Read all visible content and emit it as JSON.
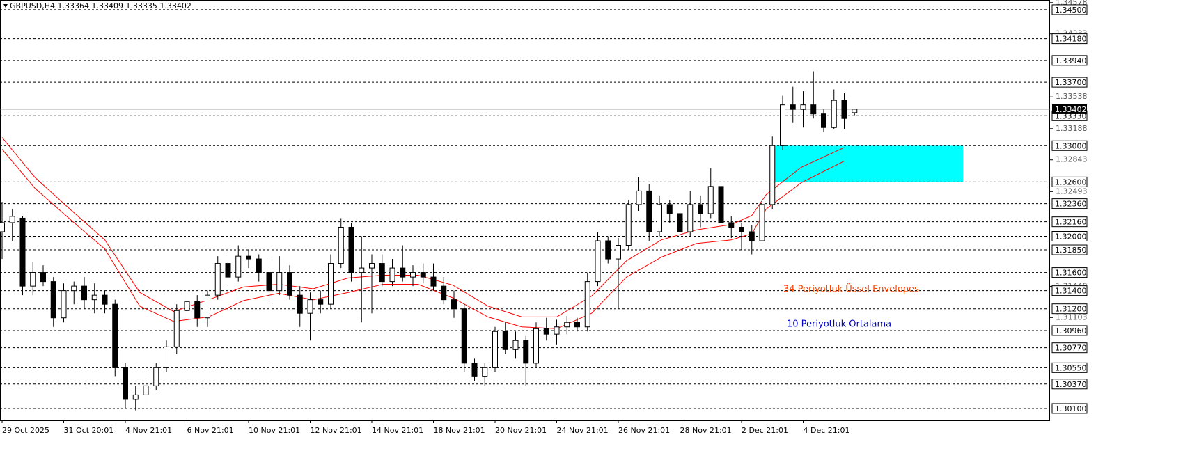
{
  "chart_data": {
    "type": "candlestick",
    "header": "GBPUSD,H4  1.33364 1.33409 1.33335 1.33402",
    "categories": [
      "29 Oct 2025",
      null,
      null,
      null,
      null,
      null,
      "31 Oct 20:01",
      null,
      null,
      null,
      null,
      null,
      "4 Nov 21:01",
      null,
      null,
      null,
      null,
      null,
      "6 Nov 21:01",
      null,
      null,
      null,
      null,
      null,
      "10 Nov 21:01",
      null,
      null,
      null,
      null,
      null,
      "12 Nov 21:01",
      null,
      null,
      null,
      null,
      null,
      "14 Nov 21:01",
      null,
      null,
      null,
      null,
      null,
      "18 Nov 21:01",
      null,
      null,
      null,
      null,
      null,
      "20 Nov 21:01",
      null,
      null,
      null,
      null,
      null,
      "24 Nov 21:01",
      null,
      null,
      null,
      null,
      null,
      "26 Nov 21:01",
      null,
      null,
      null,
      null,
      null,
      "28 Nov 21:01",
      null,
      null,
      null,
      null,
      null,
      "2 Dec 21:01",
      null,
      null,
      null,
      null,
      null,
      "4 Dec 21:01",
      null,
      null,
      null,
      null,
      null
    ],
    "open": [
      1.3205,
      1.3215,
      1.322,
      1.3145,
      1.316,
      1.315,
      1.311,
      1.314,
      1.3145,
      1.313,
      1.3135,
      1.3125,
      1.3055,
      1.302,
      1.3025,
      1.3035,
      1.3055,
      1.3078,
      1.3118,
      1.3128,
      1.311,
      1.3135,
      1.317,
      1.3155,
      1.3178,
      1.3175,
      1.316,
      1.314,
      1.316,
      1.3135,
      1.3115,
      1.313,
      1.3125,
      1.317,
      1.321,
      1.316,
      1.3165,
      1.317,
      1.315,
      1.3165,
      1.3155,
      1.316,
      1.3155,
      1.3145,
      1.313,
      1.312,
      1.306,
      1.3045,
      1.3055,
      1.3095,
      1.3075,
      1.3085,
      1.306,
      1.3098,
      1.3092,
      1.31,
      1.3105,
      1.31,
      1.315,
      1.3195,
      1.3175,
      1.319,
      1.3235,
      1.325,
      1.3205,
      1.3235,
      1.3225,
      1.3205,
      1.3235,
      1.3225,
      1.3255,
      1.3215,
      1.321,
      1.3205,
      1.3195,
      1.3235,
      1.33,
      1.3345,
      1.334,
      1.3345,
      1.3335,
      1.332,
      1.335,
      1.33364
    ],
    "high": [
      1.3238,
      1.323,
      1.3222,
      1.3172,
      1.3168,
      1.3155,
      1.3148,
      1.315,
      1.3155,
      1.3148,
      1.314,
      1.313,
      1.306,
      1.3035,
      1.3045,
      1.306,
      1.3085,
      1.3125,
      1.314,
      1.3135,
      1.314,
      1.3178,
      1.318,
      1.319,
      1.3185,
      1.318,
      1.3175,
      1.3178,
      1.3168,
      1.3145,
      1.3138,
      1.314,
      1.318,
      1.322,
      1.3215,
      1.32,
      1.318,
      1.318,
      1.3175,
      1.319,
      1.3168,
      1.317,
      1.317,
      1.3155,
      1.314,
      1.3125,
      1.3065,
      1.306,
      1.31,
      1.3105,
      1.3095,
      1.309,
      1.3105,
      1.311,
      1.3108,
      1.3112,
      1.311,
      1.316,
      1.3205,
      1.32,
      1.3198,
      1.324,
      1.3265,
      1.3258,
      1.3245,
      1.324,
      1.3235,
      1.325,
      1.3245,
      1.3275,
      1.3258,
      1.3222,
      1.3215,
      1.3212,
      1.324,
      1.331,
      1.3355,
      1.3365,
      1.336,
      1.3382,
      1.334,
      1.3362,
      1.3358,
      1.33409
    ],
    "low": [
      1.3175,
      1.3195,
      1.3135,
      1.3135,
      1.3145,
      1.31,
      1.3105,
      1.3125,
      1.312,
      1.3115,
      1.3115,
      1.3045,
      1.301,
      1.3008,
      1.3012,
      1.303,
      1.305,
      1.307,
      1.311,
      1.31,
      1.31,
      1.313,
      1.3145,
      1.315,
      1.3165,
      1.315,
      1.3125,
      1.3135,
      1.313,
      1.31,
      1.3085,
      1.3115,
      1.312,
      1.3165,
      1.315,
      1.3105,
      1.3115,
      1.3145,
      1.3145,
      1.315,
      1.3145,
      1.3148,
      1.314,
      1.3125,
      1.311,
      1.305,
      1.304,
      1.3035,
      1.305,
      1.307,
      1.3065,
      1.3035,
      1.3055,
      1.3085,
      1.308,
      1.3092,
      1.3095,
      1.3095,
      1.3145,
      1.317,
      1.312,
      1.3185,
      1.3228,
      1.3195,
      1.32,
      1.3215,
      1.32,
      1.32,
      1.321,
      1.322,
      1.3205,
      1.3198,
      1.3185,
      1.318,
      1.319,
      1.323,
      1.3295,
      1.3325,
      1.332,
      1.333,
      1.3315,
      1.3318,
      1.3318,
      1.33335
    ],
    "close": [
      1.3215,
      1.3222,
      1.3145,
      1.316,
      1.315,
      1.311,
      1.314,
      1.3145,
      1.313,
      1.3135,
      1.3125,
      1.3055,
      1.302,
      1.3025,
      1.3035,
      1.3055,
      1.3078,
      1.3118,
      1.3128,
      1.311,
      1.3135,
      1.317,
      1.3155,
      1.3178,
      1.3175,
      1.316,
      1.314,
      1.316,
      1.3135,
      1.3115,
      1.313,
      1.3125,
      1.317,
      1.321,
      1.316,
      1.3165,
      1.317,
      1.315,
      1.3165,
      1.3155,
      1.316,
      1.3155,
      1.3145,
      1.313,
      1.312,
      1.306,
      1.3045,
      1.3055,
      1.3095,
      1.3075,
      1.3085,
      1.306,
      1.3098,
      1.3092,
      1.31,
      1.3105,
      1.31,
      1.315,
      1.3195,
      1.3175,
      1.319,
      1.3235,
      1.325,
      1.3205,
      1.3235,
      1.3225,
      1.3205,
      1.3235,
      1.3225,
      1.3255,
      1.3215,
      1.321,
      1.3205,
      1.3195,
      1.3235,
      1.33,
      1.3345,
      1.334,
      1.3345,
      1.3335,
      1.332,
      1.335,
      1.333,
      1.33402
    ],
    "up_color": "#ffffff",
    "down_color": "#000000",
    "ylim": [
      1.29969,
      1.34607
    ],
    "yticks": [
      1.34578,
      1.34233,
      1.33538,
      1.33188,
      1.32843,
      1.32493,
      1.31448,
      1.31103
    ],
    "levels": [
      {
        "value": 1.345,
        "label": "1.34500"
      },
      {
        "value": 1.3418,
        "label": "1.34180"
      },
      {
        "value": 1.3394,
        "label": "1.33940"
      },
      {
        "value": 1.337,
        "label": "1.33700"
      },
      {
        "value": 1.3333,
        "label": "1.33330"
      },
      {
        "value": 1.33,
        "label": "1.33000"
      },
      {
        "value": 1.326,
        "label": "1.32600"
      },
      {
        "value": 1.3236,
        "label": "1.32360"
      },
      {
        "value": 1.3216,
        "label": "1.32160"
      },
      {
        "value": 1.32,
        "label": "1.32000"
      },
      {
        "value": 1.3185,
        "label": "1.31850"
      },
      {
        "value": 1.316,
        "label": "1.31600"
      },
      {
        "value": 1.314,
        "label": "1.31400"
      },
      {
        "value": 1.312,
        "label": "1.31200"
      },
      {
        "value": 1.3096,
        "label": "1.30960"
      },
      {
        "value": 1.3077,
        "label": "1.30770"
      },
      {
        "value": 1.3055,
        "label": "1.30550"
      },
      {
        "value": 1.3037,
        "label": "1.30370"
      },
      {
        "value": 1.301,
        "label": "1.30100"
      }
    ],
    "price_line": 1.33402,
    "series": [
      {
        "color": "#ff0000",
        "x": [
          0,
          3.2,
          6.6,
          10,
          13.4,
          16.7,
          20.1,
          23.5,
          26.9,
          30.3,
          33.7,
          37.1,
          40.5,
          43.9,
          47.3,
          50.6,
          54,
          57.4,
          60.8,
          64.2,
          67.6,
          71,
          73,
          74.4,
          77.8,
          82
        ],
        "values": [
          1.3309,
          1.3265,
          1.323,
          1.3196,
          1.3138,
          1.3117,
          1.313,
          1.3144,
          1.3147,
          1.3142,
          1.3154,
          1.3157,
          1.3157,
          1.3146,
          1.3123,
          1.3111,
          1.3111,
          1.3134,
          1.3173,
          1.3196,
          1.3207,
          1.3213,
          1.3223,
          1.3246,
          1.3276,
          1.3298
        ]
      },
      {
        "color": "#ff0000",
        "x": [
          0,
          3.2,
          6.6,
          10,
          13.4,
          16.7,
          20.1,
          23.5,
          26.9,
          30.3,
          33.7,
          37.1,
          40.5,
          43.9,
          47.3,
          50.6,
          54,
          57.4,
          60.8,
          64.2,
          67.6,
          71,
          73,
          74.4,
          77.8,
          82
        ],
        "values": [
          1.3296,
          1.3253,
          1.3219,
          1.3186,
          1.3123,
          1.3106,
          1.3111,
          1.3129,
          1.3137,
          1.313,
          1.3138,
          1.3147,
          1.3147,
          1.3132,
          1.3111,
          1.31,
          1.3098,
          1.3115,
          1.3155,
          1.3177,
          1.3192,
          1.3196,
          1.3203,
          1.323,
          1.3259,
          1.3283
        ]
      }
    ],
    "zone": {
      "from": 1.33,
      "to": 1.326,
      "x": [
        75.05,
        93.56
      ],
      "color": "#00ffff"
    },
    "annotations": [
      {
        "text": "34 Periyotluk Üssel Envelopes",
        "color": "#ff4500"
      },
      {
        "text": "10 Periyotluk Ortalama",
        "color": "#0000cd"
      }
    ]
  }
}
